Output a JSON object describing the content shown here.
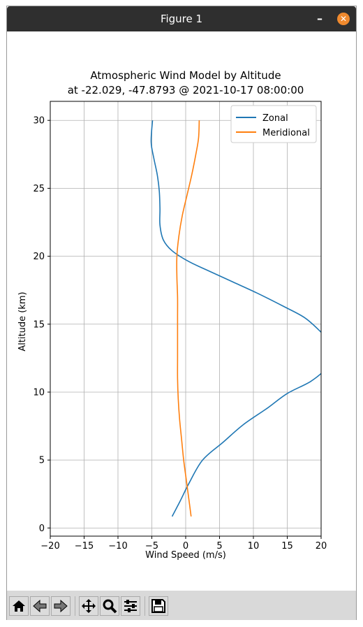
{
  "window": {
    "title": "Figure 1"
  },
  "toolbar": {
    "icons": [
      "home-icon",
      "back-icon",
      "forward-icon",
      "pan-icon",
      "zoom-icon",
      "configure-icon",
      "save-icon"
    ]
  },
  "chart_data": {
    "type": "line",
    "title": "Atmospheric Wind Model by Altitude",
    "subtitle": "at -22.029, -47.8793 @ 2021-10-17 08:00:00",
    "xlabel": "Wind Speed (m/s)",
    "ylabel": "Altitude (km)",
    "xlim": [
      -20,
      20
    ],
    "ylim": [
      -0.6,
      31.4
    ],
    "xticks": [
      "−20",
      "−15",
      "−10",
      "−5",
      "0",
      "5",
      "10",
      "15",
      "20"
    ],
    "xtick_values": [
      -20,
      -15,
      -10,
      -5,
      0,
      5,
      10,
      15,
      20
    ],
    "yticks": [
      "0",
      "5",
      "10",
      "15",
      "20",
      "25",
      "30"
    ],
    "ytick_values": [
      0,
      5,
      10,
      15,
      20,
      25,
      30
    ],
    "grid": true,
    "legend": "upper right",
    "series": [
      {
        "name": "Zonal",
        "color": "#1f77b4",
        "points": [
          [
            -2.0,
            0.85
          ],
          [
            -0.8,
            2.0
          ],
          [
            0.5,
            3.3
          ],
          [
            2.5,
            5.0
          ],
          [
            5.5,
            6.3
          ],
          [
            8.5,
            7.6
          ],
          [
            12.0,
            8.8
          ],
          [
            15.0,
            9.9
          ],
          [
            18.5,
            10.8
          ],
          [
            20.8,
            11.8
          ],
          [
            21.5,
            12.8
          ],
          [
            21.0,
            13.8
          ],
          [
            19.6,
            14.6
          ],
          [
            17.5,
            15.5
          ],
          [
            14.5,
            16.3
          ],
          [
            10.5,
            17.3
          ],
          [
            7.0,
            18.1
          ],
          [
            3.5,
            18.9
          ],
          [
            0.5,
            19.6
          ],
          [
            -2.0,
            20.4
          ],
          [
            -3.3,
            21.2
          ],
          [
            -3.8,
            22.3
          ],
          [
            -3.8,
            23.5
          ],
          [
            -3.9,
            24.8
          ],
          [
            -4.2,
            26.0
          ],
          [
            -4.7,
            27.2
          ],
          [
            -5.1,
            28.4
          ],
          [
            -4.9,
            30.0
          ]
        ]
      },
      {
        "name": "Meridional",
        "color": "#ff7f0e",
        "points": [
          [
            0.8,
            0.85
          ],
          [
            0.5,
            2.0
          ],
          [
            0.1,
            3.5
          ],
          [
            -0.3,
            5.0
          ],
          [
            -0.6,
            6.5
          ],
          [
            -0.9,
            8.0
          ],
          [
            -1.1,
            9.5
          ],
          [
            -1.2,
            11.0
          ],
          [
            -1.2,
            12.5
          ],
          [
            -1.2,
            14.0
          ],
          [
            -1.2,
            15.5
          ],
          [
            -1.2,
            17.0
          ],
          [
            -1.3,
            18.5
          ],
          [
            -1.3,
            20.0
          ],
          [
            -1.0,
            21.5
          ],
          [
            -0.5,
            23.0
          ],
          [
            0.2,
            24.5
          ],
          [
            0.9,
            26.0
          ],
          [
            1.5,
            27.5
          ],
          [
            1.9,
            28.7
          ],
          [
            2.0,
            30.0
          ]
        ]
      }
    ]
  }
}
